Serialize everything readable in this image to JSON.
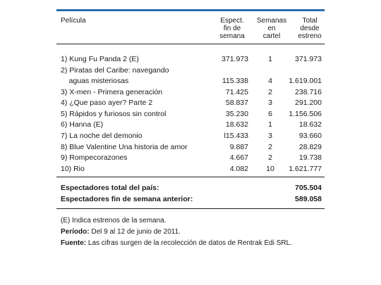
{
  "headers": {
    "pelicula": "Película",
    "espect": "Espect.\nfin de\nsemana",
    "semanas": "Semanas\nen\ncartel",
    "total": "Total\ndesde\nestreno"
  },
  "rows": [
    {
      "title": "1) Kung Fu Panda 2 (E)",
      "espect": "371.973",
      "semanas": "1",
      "total": "371.973"
    },
    {
      "title": "2) Piratas del Caribe: navegando\n    aguas misteriosas",
      "espect": "115.338",
      "semanas": "4",
      "total": "1.619.001"
    },
    {
      "title": "3) X-men - Primera generación",
      "espect": "71.425",
      "semanas": "2",
      "total": "238.716"
    },
    {
      "title": "4) ¿Que paso ayer? Parte 2",
      "espect": "58.837",
      "semanas": "3",
      "total": "291.200"
    },
    {
      "title": "5) Rápidos y furiosos sin control",
      "espect": "35.230",
      "semanas": "6",
      "total": "1.156.506"
    },
    {
      "title": "6) Hanna (E)",
      "espect": "18.632",
      "semanas": "1",
      "total": "18.632"
    },
    {
      "title": "7) La noche del demonio",
      "espect": "l15.433",
      "semanas": "3",
      "total": "93.660"
    },
    {
      "title": "8) Blue Valentine Una historia de amor",
      "espect": "9.887",
      "semanas": "2",
      "total": "28.829"
    },
    {
      "title": "9) Rompecorazones",
      "espect": "4.667",
      "semanas": "2",
      "total": "19.738"
    },
    {
      "title": "10) Rio",
      "espect": "4.082",
      "semanas": "10",
      "total": "1.621.777"
    }
  ],
  "totals": {
    "pais_label": "Espectadores total del país:",
    "pais_value": "705.504",
    "anterior_label": "Espectadores fin de semana anterior:",
    "anterior_value": "589.058"
  },
  "notes": {
    "estrenos": "(E) Indica estrenos de la semana.",
    "periodo_label": "Período:",
    "periodo_text": " Del 9 al 12 de junio de 2011.",
    "fuente_label": "Fuente:",
    "fuente_text": " Las cifras surgen de la recolección de datos de Rentrak Edi SRL."
  },
  "colors": {
    "accent_rule": "#2a6cad"
  }
}
